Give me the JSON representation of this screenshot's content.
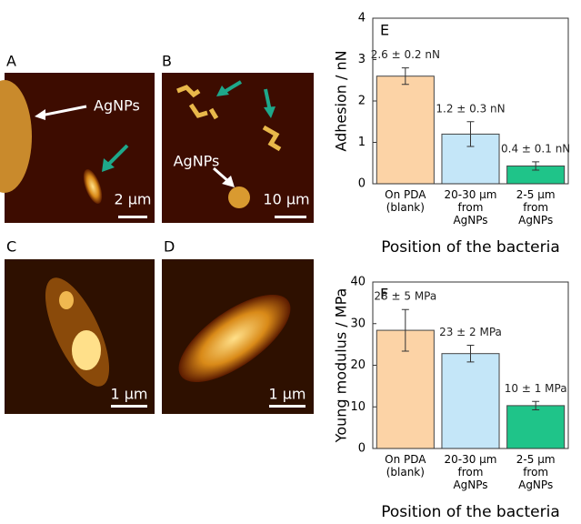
{
  "images": [
    {
      "label": "A",
      "annotation": "AgNPs",
      "scale": "2 µm"
    },
    {
      "label": "B",
      "annotation": "AgNPs",
      "scale": "10 µm"
    },
    {
      "label": "C",
      "scale": "1 µm"
    },
    {
      "label": "D",
      "scale": "1 µm"
    }
  ],
  "chart_data": [
    {
      "type": "bar",
      "title": "E",
      "y_label": "Adhesion / nN",
      "x_label": "Position of the bacteria",
      "categories": [
        "On PDA\n(blank)",
        "20-30 µm\nfrom\nAgNPs",
        "2-5 µm\nfrom\nAgNPs"
      ],
      "values": [
        2.6,
        1.2,
        0.43
      ],
      "errors": [
        0.2,
        0.3,
        0.1
      ],
      "value_labels": [
        "2.6 ± 0.2 nN",
        "1.2 ± 0.3 nN",
        "0.4 ± 0.1 nN"
      ],
      "colors": [
        "#fcd3a6",
        "#c4e6f8",
        "#1fc489"
      ],
      "ylim": [
        0,
        4
      ],
      "yticks": [
        0,
        1,
        2,
        3,
        4
      ]
    },
    {
      "type": "bar",
      "title": "F",
      "y_label": "Young modulus / MPa",
      "x_label": "Position of the bacteria",
      "categories": [
        "On PDA\n(blank)",
        "20-30 µm\nfrom\nAgNPs",
        "2-5 µm\nfrom\nAgNPs"
      ],
      "values": [
        28.4,
        22.8,
        10.3
      ],
      "errors": [
        5,
        2,
        1
      ],
      "value_labels": [
        "28 ± 5 MPa",
        "23 ± 2 MPa",
        "10 ± 1 MPa"
      ],
      "colors": [
        "#fcd3a6",
        "#c4e6f8",
        "#1fc489"
      ],
      "ylim": [
        0,
        40
      ],
      "yticks": [
        0,
        10,
        20,
        30,
        40
      ]
    }
  ]
}
